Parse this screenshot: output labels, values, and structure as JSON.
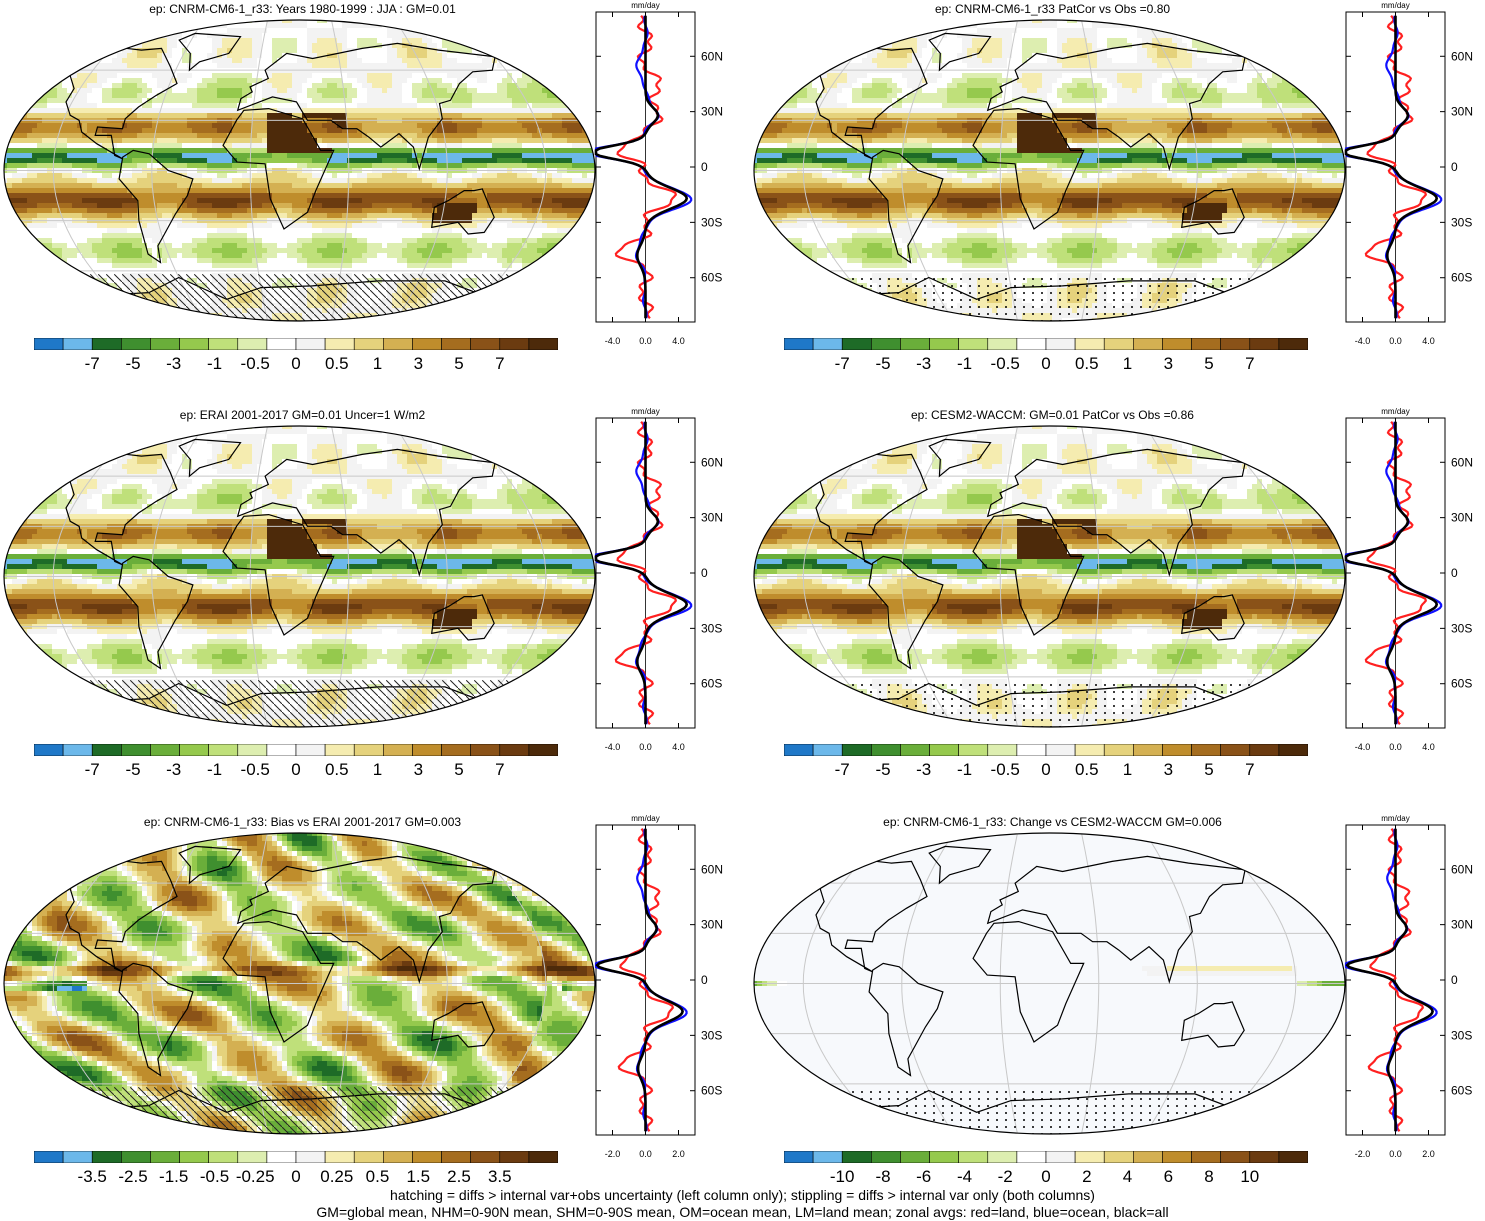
{
  "panels": [
    {
      "id": "p1",
      "title": "ep: CNRM-CM6-1_r33: Years 1980-1999 : JJA : GM=0.01",
      "scheme": "mean",
      "hatch": "hatch",
      "colorbar_labels": [
        "-7",
        "-5",
        "-3",
        "-1",
        "-0.5",
        "0",
        "0.5",
        "1",
        "3",
        "5",
        "7"
      ],
      "zonal": {
        "unit": "mm/day",
        "x_ticks": [
          "-4.0",
          "0.0",
          "4.0"
        ],
        "y_ticks": [
          "60N",
          "30N",
          "0",
          "30S",
          "60S"
        ],
        "xlim": [
          -6,
          6
        ]
      }
    },
    {
      "id": "p2",
      "title": "ep: CNRM-CM6-1_r33 PatCor vs Obs =0.80",
      "scheme": "mean",
      "hatch": "dots",
      "colorbar_labels": [
        "-7",
        "-5",
        "-3",
        "-1",
        "-0.5",
        "0",
        "0.5",
        "1",
        "3",
        "5",
        "7"
      ],
      "zonal": {
        "unit": "mm/day",
        "x_ticks": [
          "-4.0",
          "0.0",
          "4.0"
        ],
        "y_ticks": [
          "60N",
          "30N",
          "0",
          "30S",
          "60S"
        ],
        "xlim": [
          -6,
          6
        ]
      }
    },
    {
      "id": "p3",
      "title": "ep: ERAI 2001-2017 GM=0.01 Uncer=1 W/m2",
      "scheme": "mean",
      "hatch": "hatch",
      "colorbar_labels": [
        "-7",
        "-5",
        "-3",
        "-1",
        "-0.5",
        "0",
        "0.5",
        "1",
        "3",
        "5",
        "7"
      ],
      "zonal": {
        "unit": "mm/day",
        "x_ticks": [
          "-4.0",
          "0.0",
          "4.0"
        ],
        "y_ticks": [
          "60N",
          "30N",
          "0",
          "30S",
          "60S"
        ],
        "xlim": [
          -6,
          6
        ]
      }
    },
    {
      "id": "p4",
      "title": "ep: CESM2-WACCM: GM=0.01 PatCor vs Obs =0.86",
      "scheme": "mean",
      "hatch": "dots",
      "colorbar_labels": [
        "-7",
        "-5",
        "-3",
        "-1",
        "-0.5",
        "0",
        "0.5",
        "1",
        "3",
        "5",
        "7"
      ],
      "zonal": {
        "unit": "mm/day",
        "x_ticks": [
          "-4.0",
          "0.0",
          "4.0"
        ],
        "y_ticks": [
          "60N",
          "30N",
          "0",
          "30S",
          "60S"
        ],
        "xlim": [
          -6,
          6
        ]
      }
    },
    {
      "id": "p5",
      "title": "ep: CNRM-CM6-1_r33: Bias vs ERAI 2001-2017 GM=0.003",
      "scheme": "bias",
      "hatch": "hatch",
      "colorbar_labels": [
        "-3.5",
        "-2.5",
        "-1.5",
        "-0.5",
        "-0.25",
        "0",
        "0.25",
        "0.5",
        "1.5",
        "2.5",
        "3.5"
      ],
      "zonal": {
        "unit": "mm/day",
        "x_ticks": [
          "-2.0",
          "0.0",
          "2.0"
        ],
        "y_ticks": [
          "60N",
          "30N",
          "0",
          "30S",
          "60S"
        ],
        "xlim": [
          -3,
          3
        ]
      }
    },
    {
      "id": "p6",
      "title": "ep: CNRM-CM6-1_r33: Change vs CESM2-WACCM GM=0.006",
      "scheme": "change",
      "hatch": "dots",
      "colorbar_labels": [
        "-10",
        "-8",
        "-6",
        "-4",
        "-2",
        "0",
        "2",
        "4",
        "6",
        "8",
        "10"
      ],
      "zonal": {
        "unit": "mm/day",
        "x_ticks": [
          "-2.0",
          "0.0",
          "2.0"
        ],
        "y_ticks": [
          "60N",
          "30N",
          "0",
          "30S",
          "60S"
        ],
        "xlim": [
          -3,
          3
        ]
      }
    }
  ],
  "colorbar_colors": [
    "#1f78c8",
    "#6cb8ea",
    "#1e6b27",
    "#3f8f2f",
    "#6aae3a",
    "#95c94d",
    "#bfe07a",
    "#ddeeb0",
    "#ffffff",
    "#f3f3f3",
    "#f5ecb0",
    "#e5d27c",
    "#d4b052",
    "#bf8d2c",
    "#a56d1f",
    "#8a5218",
    "#6b3b10",
    "#4d2a0a"
  ],
  "footer": {
    "line1": "hatching = diffs > internal var+obs uncertainty (left column only); stippling = diffs > internal var only (both columns)",
    "line2": "GM=global mean, NHM=0-90N mean, SHM=0-90S mean, OM=ocean mean, LM=land mean; zonal avgs: red=land, blue=ocean, black=all"
  }
}
